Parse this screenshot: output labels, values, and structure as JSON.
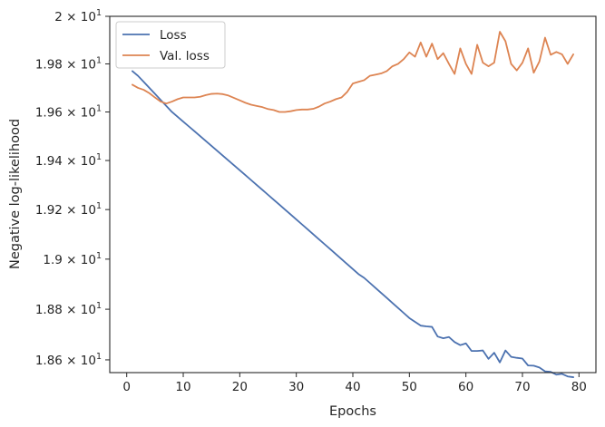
{
  "chart_data": {
    "type": "line",
    "title": "",
    "xlabel": "Epochs",
    "ylabel": "Negative log-likelihood",
    "xlim": [
      -3,
      83
    ],
    "ylim": [
      18.55,
      20.0
    ],
    "yscale": "log",
    "grid": false,
    "legend_position": "top-left",
    "x_ticks": [
      0,
      10,
      20,
      30,
      40,
      50,
      60,
      70,
      80
    ],
    "y_ticks": [
      {
        "value": 18.6,
        "mantissa": "1.86",
        "base": "10",
        "exponent": "1"
      },
      {
        "value": 18.8,
        "mantissa": "1.88",
        "base": "10",
        "exponent": "1"
      },
      {
        "value": 19.0,
        "mantissa": "1.9",
        "base": "10",
        "exponent": "1"
      },
      {
        "value": 19.2,
        "mantissa": "1.92",
        "base": "10",
        "exponent": "1"
      },
      {
        "value": 19.4,
        "mantissa": "1.94",
        "base": "10",
        "exponent": "1"
      },
      {
        "value": 19.6,
        "mantissa": "1.96",
        "base": "10",
        "exponent": "1"
      },
      {
        "value": 19.8,
        "mantissa": "1.98",
        "base": "10",
        "exponent": "1"
      },
      {
        "value": 20.0,
        "mantissa": "2",
        "base": "10",
        "exponent": "1"
      }
    ],
    "series": [
      {
        "name": "Loss",
        "color": "#4c72b0",
        "x": [
          1,
          2,
          3,
          4,
          5,
          6,
          7,
          8,
          9,
          10,
          11,
          12,
          13,
          14,
          15,
          16,
          17,
          18,
          19,
          20,
          21,
          22,
          23,
          24,
          25,
          26,
          27,
          28,
          29,
          30,
          31,
          32,
          33,
          34,
          35,
          36,
          37,
          38,
          39,
          40,
          41,
          42,
          43,
          44,
          45,
          46,
          47,
          48,
          49,
          50,
          51,
          52,
          53,
          54,
          55,
          56,
          57,
          58,
          59,
          60,
          61,
          62,
          63,
          64,
          65,
          66,
          67,
          68,
          69,
          70,
          71,
          72,
          73,
          74,
          75,
          76,
          77,
          78,
          79
        ],
        "y": [
          19.77,
          19.75,
          19.725,
          19.7,
          19.675,
          19.65,
          19.625,
          19.6,
          19.58,
          19.56,
          19.54,
          19.52,
          19.5,
          19.48,
          19.46,
          19.44,
          19.42,
          19.4,
          19.38,
          19.36,
          19.34,
          19.32,
          19.3,
          19.28,
          19.26,
          19.24,
          19.22,
          19.2,
          19.18,
          19.16,
          19.14,
          19.12,
          19.1,
          19.08,
          19.06,
          19.04,
          19.02,
          19.0,
          18.98,
          18.96,
          18.94,
          18.925,
          18.905,
          18.885,
          18.865,
          18.845,
          18.825,
          18.805,
          18.785,
          18.765,
          18.75,
          18.735,
          18.732,
          18.73,
          18.692,
          18.685,
          18.69,
          18.67,
          18.658,
          18.665,
          18.635,
          18.635,
          18.637,
          18.604,
          18.628,
          18.59,
          18.637,
          18.612,
          18.608,
          18.605,
          18.578,
          18.577,
          18.57,
          18.555,
          18.553,
          18.542,
          18.545,
          18.535,
          18.532
        ]
      },
      {
        "name": "Val. loss",
        "color": "#dd8452",
        "x": [
          1,
          2,
          3,
          4,
          5,
          6,
          7,
          8,
          9,
          10,
          11,
          12,
          13,
          14,
          15,
          16,
          17,
          18,
          19,
          20,
          21,
          22,
          23,
          24,
          25,
          26,
          27,
          28,
          29,
          30,
          31,
          32,
          33,
          34,
          35,
          36,
          37,
          38,
          39,
          40,
          41,
          42,
          43,
          44,
          45,
          46,
          47,
          48,
          49,
          50,
          51,
          52,
          53,
          54,
          55,
          56,
          57,
          58,
          59,
          60,
          61,
          62,
          63,
          64,
          65,
          66,
          67,
          68,
          69,
          70,
          71,
          72,
          73,
          74,
          75,
          76,
          77,
          78,
          79
        ],
        "y": [
          19.713,
          19.7,
          19.692,
          19.678,
          19.66,
          19.643,
          19.635,
          19.643,
          19.653,
          19.66,
          19.66,
          19.66,
          19.663,
          19.67,
          19.675,
          19.676,
          19.674,
          19.668,
          19.658,
          19.648,
          19.638,
          19.63,
          19.625,
          19.62,
          19.612,
          19.608,
          19.6,
          19.6,
          19.603,
          19.608,
          19.61,
          19.61,
          19.613,
          19.622,
          19.635,
          19.643,
          19.653,
          19.66,
          19.683,
          19.718,
          19.725,
          19.732,
          19.75,
          19.755,
          19.76,
          19.77,
          19.79,
          19.8,
          19.82,
          19.848,
          19.83,
          19.89,
          19.83,
          19.885,
          19.82,
          19.845,
          19.8,
          19.758,
          19.865,
          19.8,
          19.758,
          19.88,
          19.805,
          19.79,
          19.805,
          19.935,
          19.895,
          19.8,
          19.773,
          19.805,
          19.865,
          19.763,
          19.81,
          19.91,
          19.838,
          19.85,
          19.84,
          19.8,
          19.84
        ]
      }
    ]
  }
}
